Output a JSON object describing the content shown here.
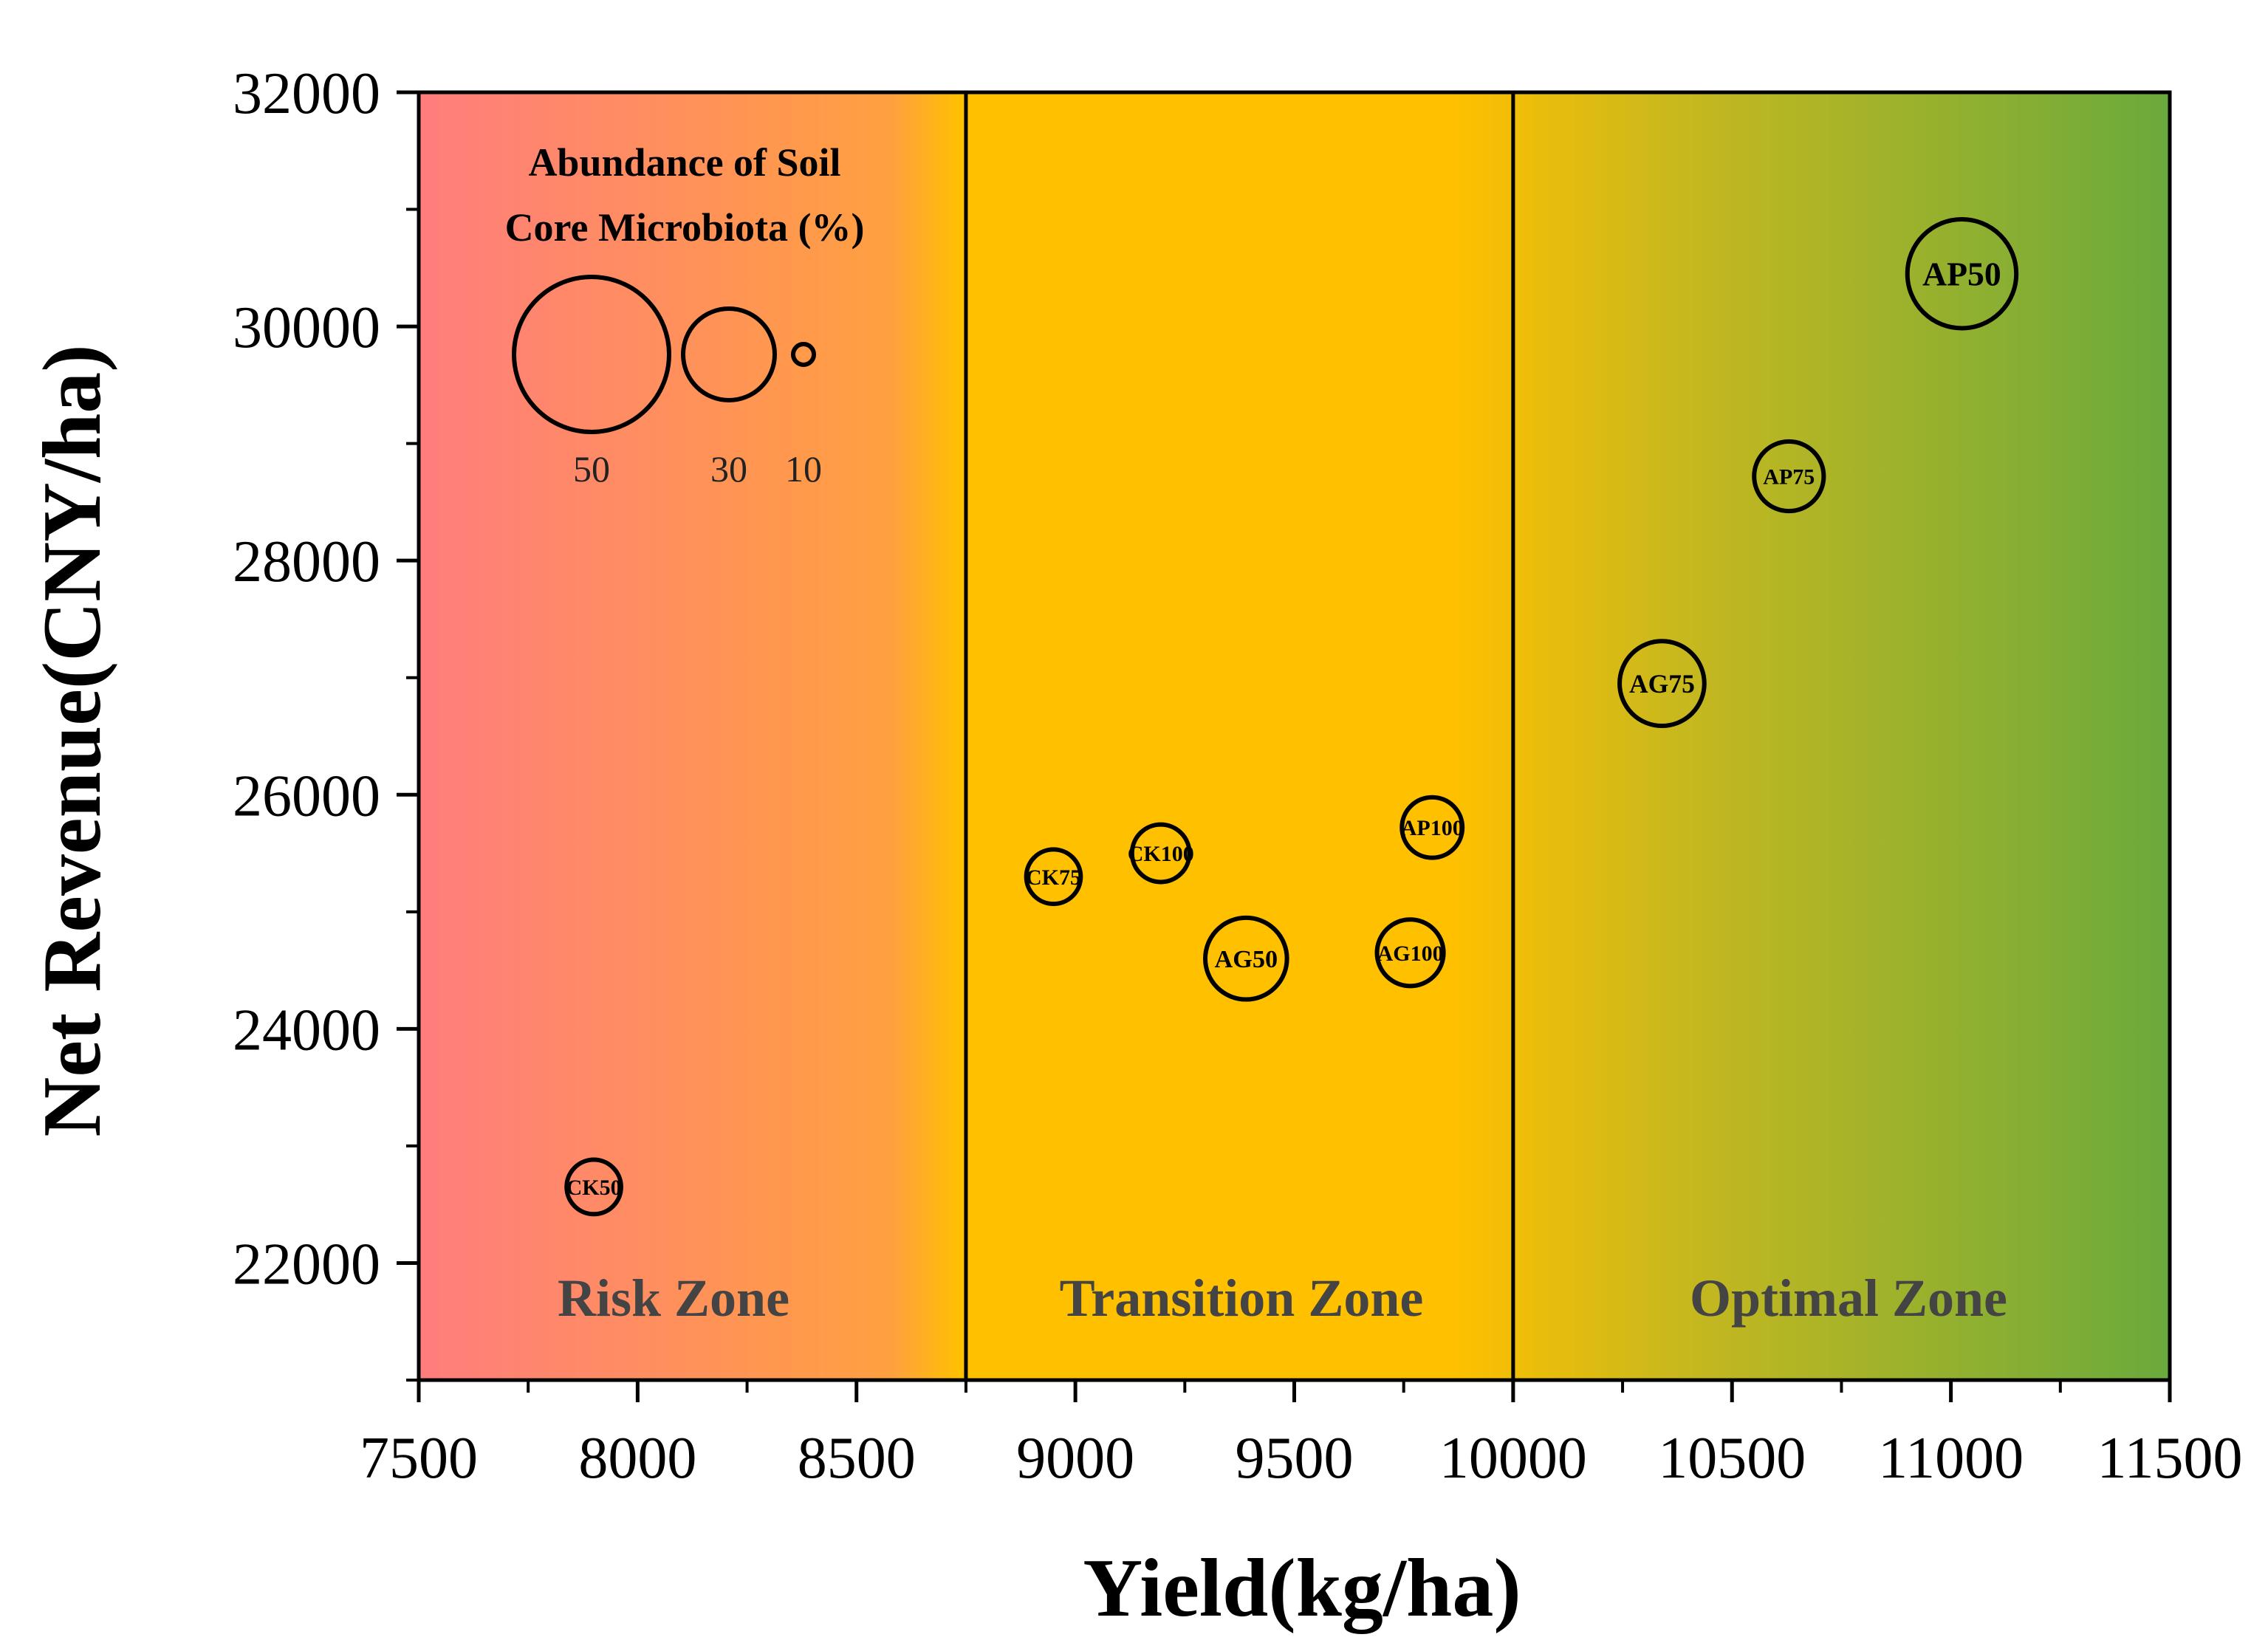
{
  "chart_data": {
    "type": "scatter",
    "xlabel": "Yield(kg/ha)",
    "ylabel": "Net Revenue(CNY/ha)",
    "xlim": [
      7500,
      11500
    ],
    "ylim": [
      21000,
      32000
    ],
    "x_ticks": [
      7500,
      8000,
      8500,
      9000,
      9500,
      10000,
      10500,
      11000,
      11500
    ],
    "y_ticks": [
      22000,
      24000,
      26000,
      28000,
      30000,
      32000
    ],
    "x_tick_labels": [
      "7500",
      "8000",
      "8500",
      "9000",
      "9500",
      "10000",
      "10500",
      "11000",
      "11500"
    ],
    "y_tick_labels": [
      "22000",
      "24000",
      "26000",
      "28000",
      "30000",
      "32000"
    ],
    "zones": [
      {
        "label": "Risk Zone",
        "x_range": [
          7500,
          8750
        ]
      },
      {
        "label": "Transition Zone",
        "x_range": [
          8750,
          10000
        ]
      },
      {
        "label": "Optimal Zone",
        "x_range": [
          10000,
          11500
        ]
      }
    ],
    "background_gradient": [
      "#ff7d7d",
      "#ffa040",
      "#ffc000",
      "#ffc000",
      "#c8b81e",
      "#6aaa3c"
    ],
    "size_variable": "Abundance of Soil Core Microbiota (%)",
    "size_legend": {
      "title_lines": [
        "Abundance of Soil",
        "Core Microbiota (%)"
      ],
      "values": [
        50,
        30,
        10
      ],
      "labels": [
        "50",
        "30",
        "10"
      ]
    },
    "points": [
      {
        "label": "CK50",
        "x": 7900,
        "y": 22650,
        "size": 17
      },
      {
        "label": "CK75",
        "x": 8950,
        "y": 25300,
        "size": 17
      },
      {
        "label": "CK100",
        "x": 9195,
        "y": 25500,
        "size": 18
      },
      {
        "label": "AG50",
        "x": 9390,
        "y": 24600,
        "size": 26
      },
      {
        "label": "AG100",
        "x": 9765,
        "y": 24650,
        "size": 21
      },
      {
        "label": "AP100",
        "x": 9815,
        "y": 25720,
        "size": 19
      },
      {
        "label": "AG75",
        "x": 10340,
        "y": 26950,
        "size": 27
      },
      {
        "label": "AP75",
        "x": 10630,
        "y": 28720,
        "size": 22
      },
      {
        "label": "AP50",
        "x": 11025,
        "y": 30450,
        "size": 35
      }
    ],
    "grid": false,
    "legend_position": "top-left"
  }
}
